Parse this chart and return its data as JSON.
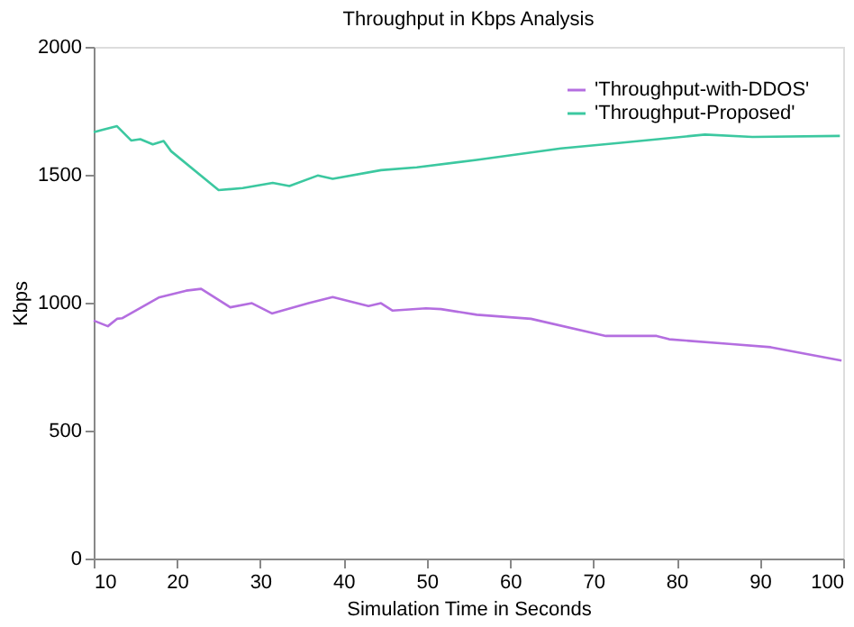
{
  "chart_data": {
    "type": "line",
    "title": "Throughput in Kbps Analysis",
    "xlabel": "Simulation Time in Seconds",
    "ylabel": "Kbps",
    "xlim": [
      10,
      100
    ],
    "xticks": [
      10,
      20,
      30,
      40,
      50,
      60,
      70,
      80,
      90,
      100
    ],
    "ylim": [
      0,
      2000
    ],
    "yticks": [
      0,
      500,
      1000,
      1500,
      2000
    ],
    "grid": false,
    "legend": "top right",
    "marker": "none",
    "line_style": "solid",
    "series": [
      {
        "name": "'Throughput-with-DDOS'",
        "color": "#b46ee0",
        "x": [
          10,
          11.7,
          12.8,
          13.4,
          17.8,
          21.1,
          22.9,
          26.4,
          29,
          31.4,
          35.8,
          38.7,
          43,
          44.5,
          45.9,
          49.9,
          51.7,
          56,
          62.5,
          71.5,
          77.6,
          79.1,
          86.3,
          91.3,
          99.8
        ],
        "values": [
          930,
          908,
          937,
          939,
          1020,
          1047,
          1054,
          982,
          998,
          958,
          998,
          1022,
          987,
          998,
          969,
          978,
          975,
          953,
          937,
          870,
          870,
          857,
          839,
          826,
          774
        ]
      },
      {
        "name": "'Throughput-Proposed'",
        "color": "#3cc8a0",
        "x": [
          10,
          11,
          12.8,
          14.5,
          15.6,
          17.1,
          18.4,
          19.3,
          25,
          27.9,
          31.5,
          33.5,
          36.9,
          38.7,
          44.5,
          48.8,
          56,
          66.1,
          73.3,
          83.4,
          89.1,
          99.6
        ],
        "values": [
          1666,
          1675,
          1690,
          1634,
          1639,
          1619,
          1632,
          1592,
          1440,
          1448,
          1468,
          1456,
          1497,
          1484,
          1518,
          1529,
          1558,
          1603,
          1625,
          1657,
          1648,
          1652
        ]
      }
    ]
  }
}
